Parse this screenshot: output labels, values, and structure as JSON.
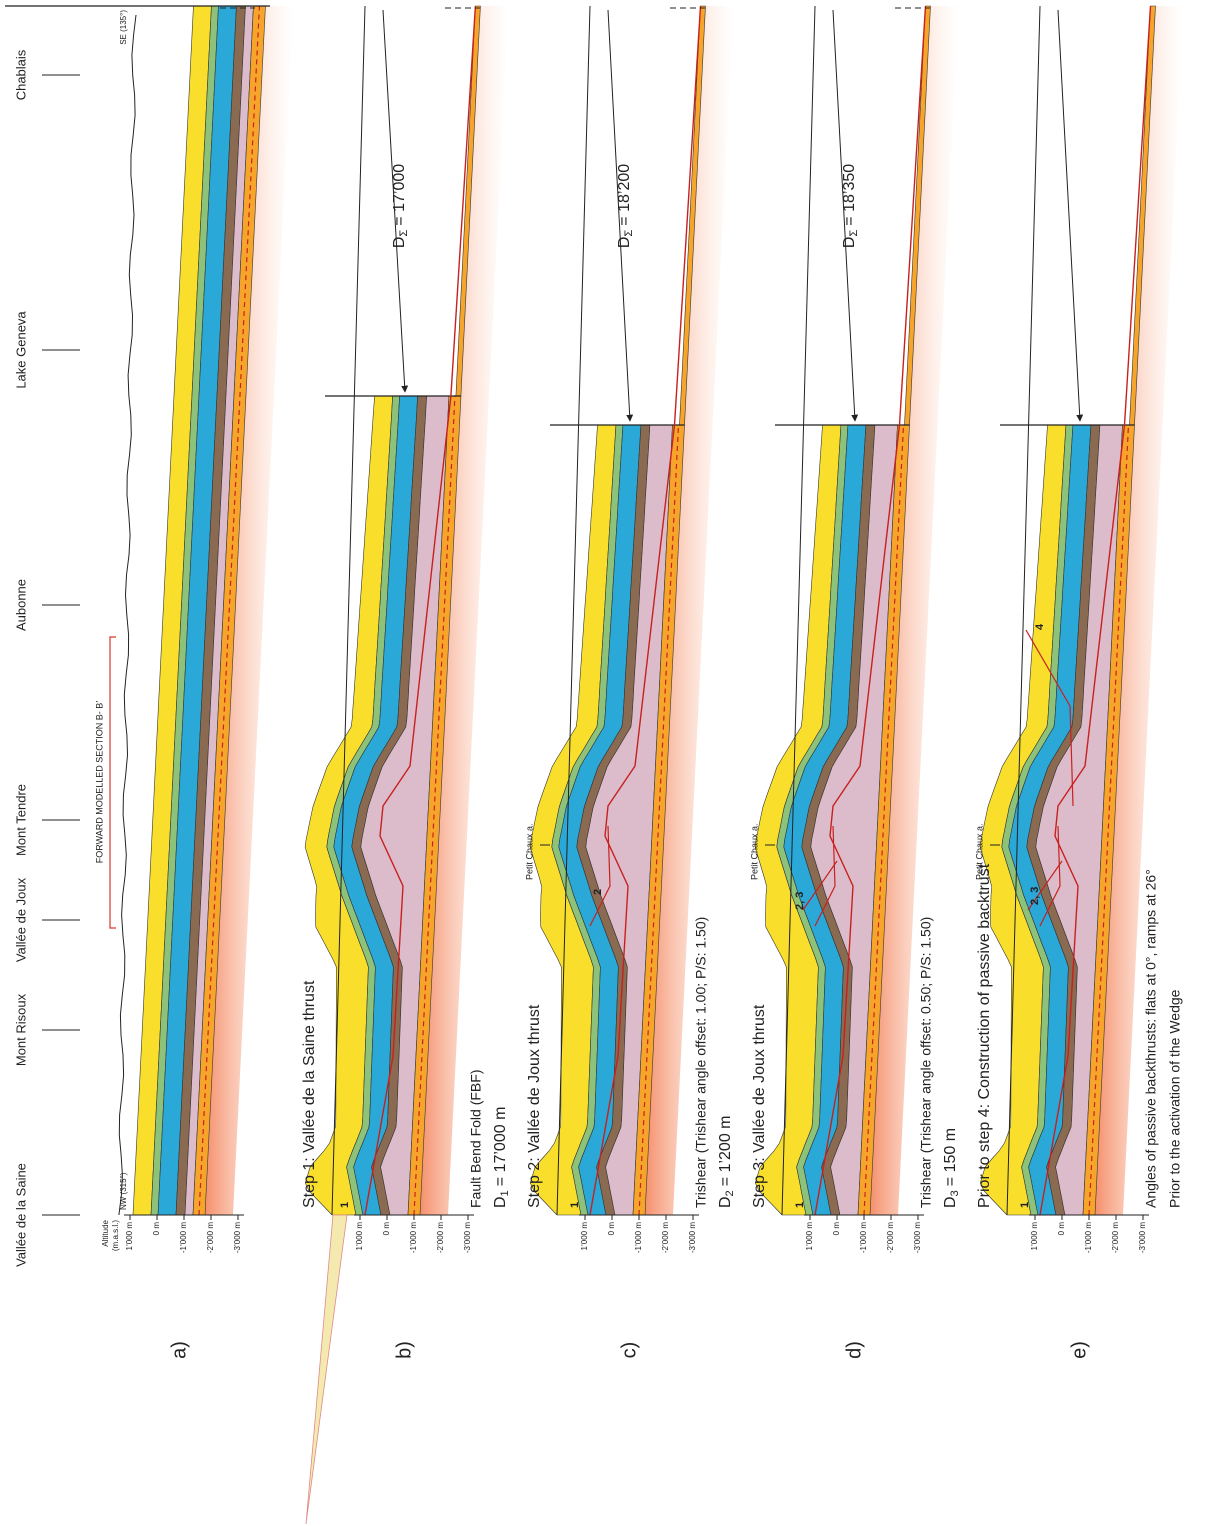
{
  "header": {
    "places": [
      "Vallée de la Saine",
      "Mont Risoux",
      "Vallée de Joux",
      "Mont Tendre",
      "Aubonne",
      "Lake Geneva",
      "Chablais"
    ],
    "section": "FORWARD MODELLED SECTION B- B’",
    "axis": {
      "title": "Altitude",
      "unit": "(m.a.s.l.)",
      "ticks": [
        "1’000 m",
        "0 m",
        "-1’000 m",
        "-2’000 m",
        "-3’000 m"
      ]
    },
    "nw": "NW (315°)",
    "se": "SE (135°)"
  },
  "panels": [
    {
      "label": "a)"
    },
    {
      "label": "b)",
      "title": "Step 1: Vallée de la Saine thrust",
      "notes": [
        "Fault Bend Fold (FBF)"
      ],
      "displacement": {
        "symbol": "D",
        "sub": "1",
        "text": "= 17’000 m"
      },
      "total": {
        "symbol": "D",
        "sub": "Σ",
        "text": "= 17’000"
      },
      "markers": [
        "1"
      ]
    },
    {
      "label": "c)",
      "title": "Step 2: Vallée de Joux thrust",
      "notes": [
        "Trishear (Trishear angle offset: 1.00; P/S: 1.50)"
      ],
      "displacement": {
        "symbol": "D",
        "sub": "2",
        "text": "= 1’200 m"
      },
      "total": {
        "symbol": "D",
        "sub": "Σ",
        "text": "= 18’200"
      },
      "markers": [
        "1",
        "2"
      ],
      "site": "Petit Chaux a."
    },
    {
      "label": "d)",
      "title": "Step 3: Vallée de Joux thrust",
      "notes": [
        "Trishear (Trishear angle offset: 0.50; P/S: 1.50)"
      ],
      "displacement": {
        "symbol": "D",
        "sub": "3",
        "text": "= 150 m"
      },
      "total": {
        "symbol": "D",
        "sub": "Σ",
        "text": "= 18’350"
      },
      "markers": [
        "1",
        "2, 3"
      ],
      "site": "Petit Chaux a."
    },
    {
      "label": "e)",
      "title": "Prior to step 4: Construction of passive backtrust",
      "notes": [
        "Angles of passive backthrusts: flats at 0°, ramps at 26°",
        "Prior to the activation of the Wedge"
      ],
      "markers": [
        "1",
        "2, 3",
        "4"
      ],
      "site": "Petit Chaux a."
    }
  ]
}
